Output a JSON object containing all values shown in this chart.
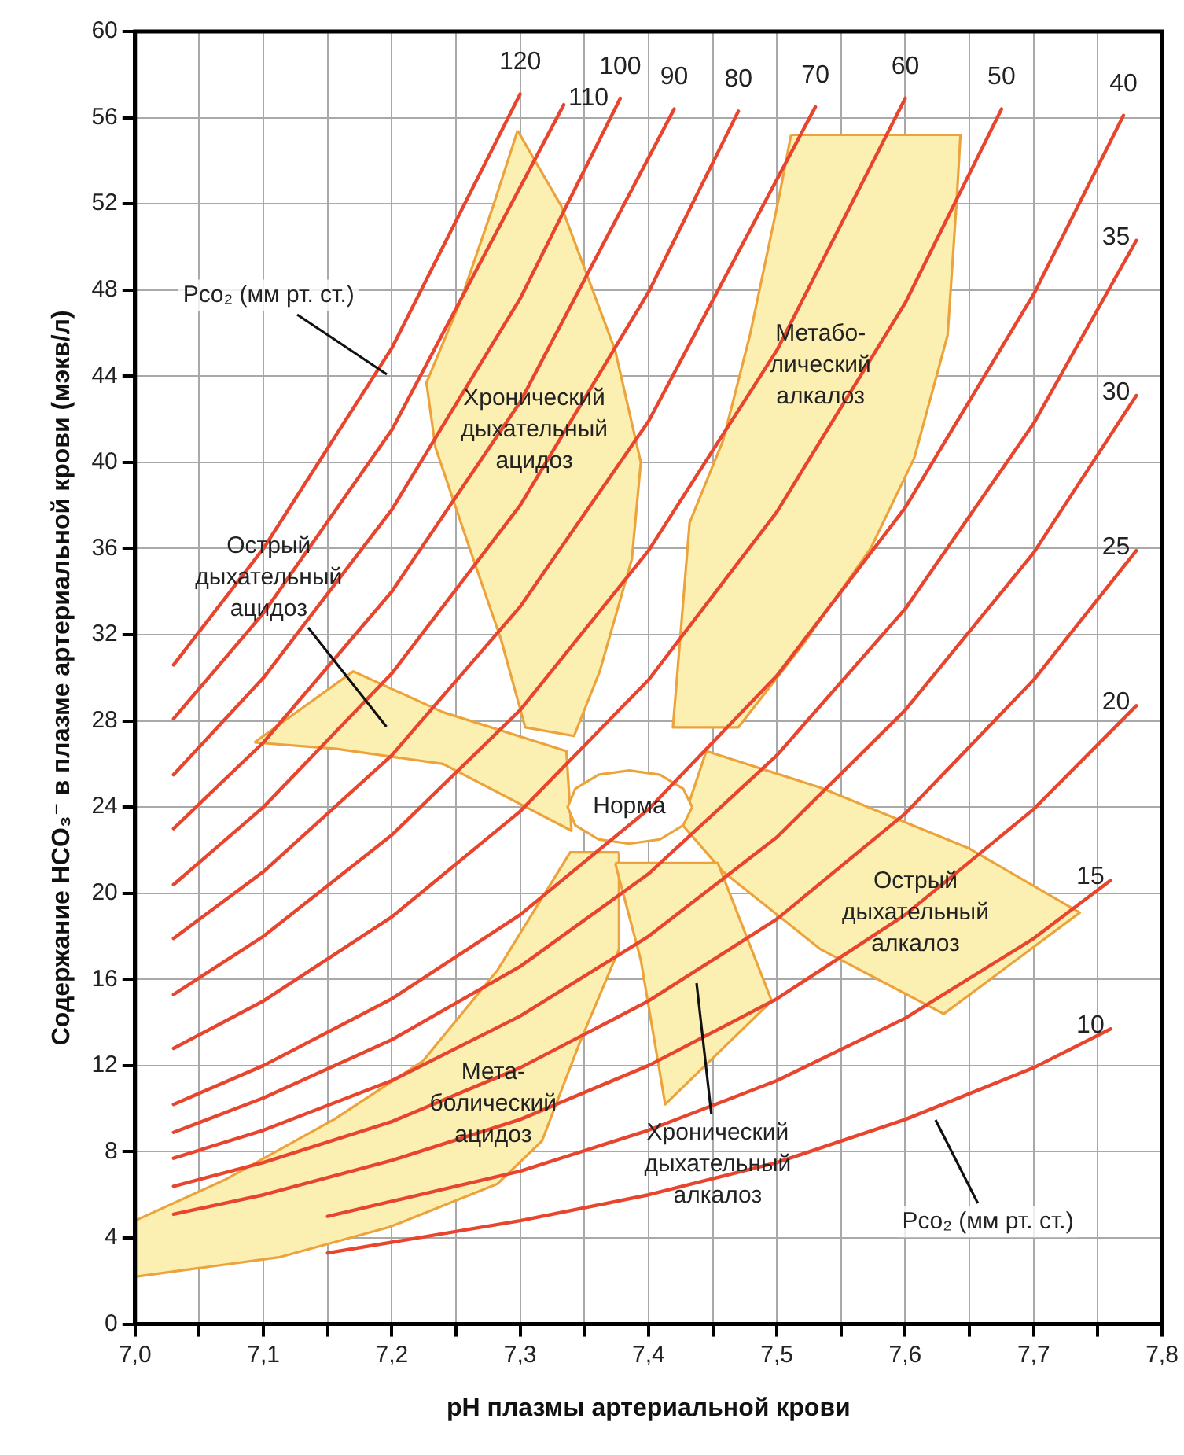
{
  "chart_data": {
    "type": "line",
    "xlabel": "pH плазмы артериальной крови",
    "ylabel": "Содержание HCO₃⁻ в плазме артериальной крови (мэкв/л)",
    "xlim": [
      7.0,
      7.8
    ],
    "ylim": [
      0,
      60
    ],
    "xticks": [
      {
        "value": 7.0,
        "label": "7,0"
      },
      {
        "value": 7.05,
        "label": null
      },
      {
        "value": 7.1,
        "label": "7,1"
      },
      {
        "value": 7.15,
        "label": null
      },
      {
        "value": 7.2,
        "label": "7,2"
      },
      {
        "value": 7.25,
        "label": null
      },
      {
        "value": 7.3,
        "label": "7,3"
      },
      {
        "value": 7.35,
        "label": null
      },
      {
        "value": 7.4,
        "label": "7,4"
      },
      {
        "value": 7.45,
        "label": null
      },
      {
        "value": 7.5,
        "label": "7,5"
      },
      {
        "value": 7.55,
        "label": null
      },
      {
        "value": 7.6,
        "label": "7,6"
      },
      {
        "value": 7.65,
        "label": null
      },
      {
        "value": 7.7,
        "label": "7,7"
      },
      {
        "value": 7.75,
        "label": null
      },
      {
        "value": 7.8,
        "label": "7,8"
      }
    ],
    "yticks": [
      0,
      4,
      8,
      12,
      16,
      20,
      24,
      28,
      32,
      36,
      40,
      44,
      48,
      52,
      56,
      60
    ],
    "grid": true,
    "legend": false,
    "marker": "none",
    "line_style": "solid",
    "series": [
      {
        "name": "120",
        "color": "#e8452e",
        "x": [
          7.03,
          7.1,
          7.2,
          7.3
        ],
        "values": [
          30.6,
          36.0,
          45.3,
          57.1
        ]
      },
      {
        "name": "110",
        "color": "#e8452e",
        "x": [
          7.03,
          7.1,
          7.2,
          7.334
        ],
        "values": [
          28.1,
          33.0,
          41.5,
          56.6
        ]
      },
      {
        "name": "100",
        "color": "#e8452e",
        "x": [
          7.03,
          7.1,
          7.2,
          7.3,
          7.378
        ],
        "values": [
          25.5,
          30.0,
          37.8,
          47.6,
          56.9
        ]
      },
      {
        "name": "90",
        "color": "#e8452e",
        "x": [
          7.03,
          7.1,
          7.2,
          7.3,
          7.42
        ],
        "values": [
          23.0,
          27.0,
          34.0,
          42.8,
          56.4
        ]
      },
      {
        "name": "80",
        "color": "#e8452e",
        "x": [
          7.03,
          7.1,
          7.2,
          7.3,
          7.4,
          7.47
        ],
        "values": [
          20.4,
          24.0,
          30.2,
          38.0,
          47.9,
          56.3
        ]
      },
      {
        "name": "70",
        "color": "#e8452e",
        "x": [
          7.03,
          7.1,
          7.2,
          7.3,
          7.4,
          7.53
        ],
        "values": [
          17.9,
          21.0,
          26.4,
          33.3,
          41.9,
          56.5
        ]
      },
      {
        "name": "60",
        "color": "#e8452e",
        "x": [
          7.03,
          7.1,
          7.2,
          7.3,
          7.4,
          7.5,
          7.6
        ],
        "values": [
          15.3,
          18.0,
          22.7,
          28.5,
          35.9,
          45.2,
          56.9
        ]
      },
      {
        "name": "50",
        "color": "#e8452e",
        "x": [
          7.03,
          7.1,
          7.2,
          7.3,
          7.4,
          7.5,
          7.6,
          7.675
        ],
        "values": [
          12.8,
          15.0,
          18.9,
          23.8,
          29.9,
          37.7,
          47.4,
          56.4
        ]
      },
      {
        "name": "40",
        "color": "#e8452e",
        "x": [
          7.03,
          7.1,
          7.2,
          7.3,
          7.4,
          7.5,
          7.6,
          7.7,
          7.77
        ],
        "values": [
          10.2,
          12.0,
          15.1,
          19.0,
          23.9,
          30.1,
          37.9,
          47.8,
          56.1
        ]
      },
      {
        "name": "35",
        "color": "#e8452e",
        "x": [
          7.03,
          7.1,
          7.2,
          7.3,
          7.4,
          7.5,
          7.6,
          7.7,
          7.78
        ],
        "values": [
          8.9,
          10.5,
          13.2,
          16.6,
          20.9,
          26.4,
          33.2,
          41.8,
          50.3
        ]
      },
      {
        "name": "30",
        "color": "#e8452e",
        "x": [
          7.03,
          7.1,
          7.2,
          7.3,
          7.4,
          7.5,
          7.6,
          7.7,
          7.78
        ],
        "values": [
          7.7,
          9.0,
          11.3,
          14.3,
          18.0,
          22.6,
          28.5,
          35.8,
          43.1
        ]
      },
      {
        "name": "25",
        "color": "#e8452e",
        "x": [
          7.03,
          7.1,
          7.2,
          7.3,
          7.4,
          7.5,
          7.6,
          7.7,
          7.78
        ],
        "values": [
          6.4,
          7.5,
          9.4,
          11.9,
          15.0,
          18.8,
          23.7,
          29.9,
          35.9
        ]
      },
      {
        "name": "20",
        "color": "#e8452e",
        "x": [
          7.03,
          7.1,
          7.2,
          7.3,
          7.4,
          7.5,
          7.6,
          7.7,
          7.78
        ],
        "values": [
          5.1,
          6.0,
          7.6,
          9.5,
          12.0,
          15.1,
          19.0,
          23.9,
          28.7
        ]
      },
      {
        "name": "15",
        "color": "#e8452e",
        "x": [
          7.15,
          7.2,
          7.3,
          7.4,
          7.5,
          7.6,
          7.7,
          7.76
        ],
        "values": [
          5.0,
          5.7,
          7.1,
          9.0,
          11.3,
          14.2,
          17.9,
          20.6
        ]
      },
      {
        "name": "10",
        "color": "#e8452e",
        "x": [
          7.15,
          7.3,
          7.4,
          7.5,
          7.6,
          7.7,
          7.76
        ],
        "values": [
          3.3,
          4.8,
          6.0,
          7.5,
          9.5,
          11.9,
          13.7
        ]
      },
      {
        "type": "area",
        "color": "#fcefb2",
        "x": [
          7.298,
          7.332,
          7.374,
          7.394,
          7.387,
          7.362,
          7.342,
          7.304,
          7.285,
          7.259,
          7.234,
          7.227,
          7.253,
          7.279
        ],
        "values": [
          55.4,
          51.9,
          45.2,
          40.0,
          35.5,
          30.3,
          27.3,
          27.7,
          31.8,
          36.3,
          40.7,
          43.7,
          47.4,
          51.9
        ]
      },
      {
        "type": "area",
        "color": "#fcefb2",
        "x": [
          7.511,
          7.643,
          7.64,
          7.633,
          7.607,
          7.573,
          7.521,
          7.47,
          7.419,
          7.426,
          7.432,
          7.458,
          7.479,
          7.502
        ],
        "values": [
          55.2,
          55.2,
          52.1,
          45.9,
          40.2,
          36.0,
          31.6,
          27.7,
          27.7,
          32.8,
          37.2,
          41.0,
          45.9,
          52.4
        ]
      },
      {
        "type": "area",
        "color": "#fcefb2",
        "x": [
          7.093,
          7.17,
          7.24,
          7.336,
          7.34,
          7.24,
          7.157
        ],
        "values": [
          27.0,
          30.3,
          28.4,
          26.6,
          22.9,
          26.0,
          26.7
        ]
      },
      {
        "type": "area",
        "color": "#fcefb2",
        "x": [
          7.445,
          7.534,
          7.649,
          7.736,
          7.63,
          7.534,
          7.458,
          7.426
        ],
        "values": [
          26.6,
          24.9,
          22.1,
          19.1,
          14.4,
          17.4,
          21.0,
          23.2
        ]
      },
      {
        "type": "area",
        "color": "#fcefb2",
        "x": [
          7.377,
          7.339,
          7.282,
          7.224,
          7.155,
          7.07,
          7.0,
          7.0,
          7.112,
          7.198,
          7.282,
          7.317,
          7.346,
          7.377
        ],
        "values": [
          21.9,
          21.9,
          16.4,
          12.2,
          9.5,
          6.7,
          4.8,
          2.2,
          3.1,
          4.5,
          6.5,
          8.5,
          13.0,
          17.4
        ]
      },
      {
        "type": "area",
        "color": "#fcefb2",
        "x": [
          7.374,
          7.394,
          7.413,
          7.496,
          7.454
        ],
        "values": [
          21.4,
          16.9,
          10.2,
          15.0,
          21.4
        ]
      },
      {
        "type": "area",
        "color": "#ffffff",
        "x": [
          7.434,
          7.427,
          7.409,
          7.385,
          7.361,
          7.343,
          7.337,
          7.343,
          7.361,
          7.385,
          7.409,
          7.427
        ],
        "values": [
          24.0,
          24.85,
          25.5,
          25.7,
          25.5,
          24.85,
          24.0,
          23.15,
          22.5,
          22.3,
          22.5,
          23.15
        ]
      }
    ],
    "annotations": [
      "Pco₂ (мм рт. ст.)",
      "Pco₂ (мм рт. ст.)",
      "Хронический\nдыхательный\nацидоз",
      "Метабо-\nлический\nалкалоз",
      "Острый\nдыхательный\nацидоз",
      "Норма",
      "Острый\nдыхательный\nалкалоз",
      "Мета-\nболический\nацидоз",
      "Хронический\nдыхательный\nалкалоз"
    ]
  }
}
